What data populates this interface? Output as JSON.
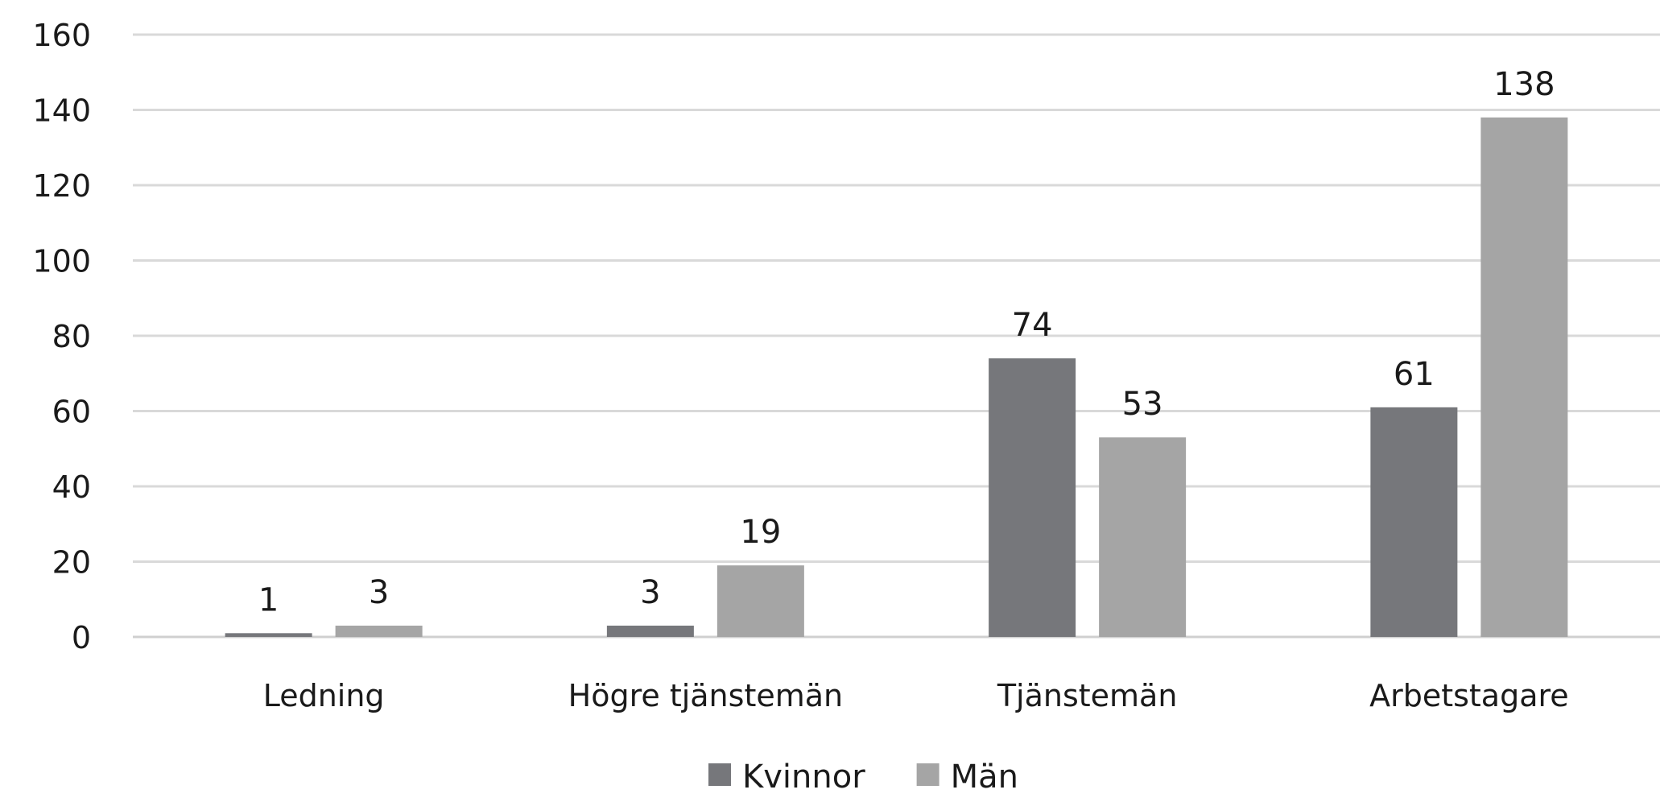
{
  "chart_data": {
    "type": "bar",
    "categories": [
      "Ledning",
      "Högre tjänstemän",
      "Tjänstemän",
      "Arbetstagare"
    ],
    "series": [
      {
        "name": "Kvinnor",
        "values": [
          1,
          3,
          74,
          61
        ],
        "color": "#76777b"
      },
      {
        "name": "Män",
        "values": [
          3,
          19,
          53,
          138
        ],
        "color": "#a5a5a5"
      }
    ],
    "ylim": [
      0,
      160
    ],
    "yticks": [
      0,
      20,
      40,
      60,
      80,
      100,
      120,
      140,
      160
    ],
    "grid": true,
    "legend": "bottom",
    "data_labels": true
  }
}
